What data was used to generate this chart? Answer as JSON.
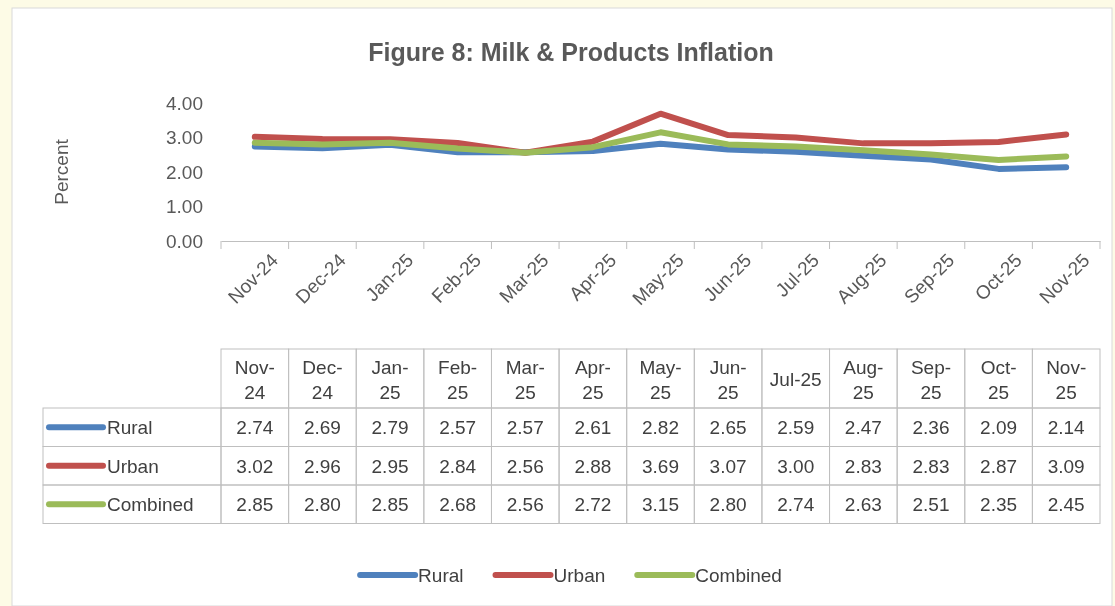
{
  "chart_data": {
    "type": "line",
    "title": "Figure 8: Milk & Products Inflation",
    "ylabel": "Percent",
    "categories": [
      "Nov-24",
      "Dec-24",
      "Jan-25",
      "Feb-25",
      "Mar-25",
      "Apr-25",
      "May-25",
      "Jun-25",
      "Jul-25",
      "Aug-25",
      "Sep-25",
      "Oct-25",
      "Nov-25"
    ],
    "series": [
      {
        "name": "Rural",
        "color": "#4f81bd",
        "values": [
          2.74,
          2.69,
          2.79,
          2.57,
          2.57,
          2.61,
          2.82,
          2.65,
          2.59,
          2.47,
          2.36,
          2.09,
          2.14
        ],
        "value_labels": [
          "2.74",
          "2.69",
          "2.79",
          "2.57",
          "2.57",
          "2.61",
          "2.82",
          "2.65",
          "2.59",
          "2.47",
          "2.36",
          "2.09",
          "2.14"
        ]
      },
      {
        "name": "Urban",
        "color": "#c0504d",
        "values": [
          3.02,
          2.96,
          2.95,
          2.84,
          2.56,
          2.88,
          3.69,
          3.07,
          3.0,
          2.83,
          2.83,
          2.87,
          3.09
        ],
        "value_labels": [
          "3.02",
          "2.96",
          "2.95",
          "2.84",
          "2.56",
          "2.88",
          "3.69",
          "3.07",
          "3.00",
          "2.83",
          "2.83",
          "2.87",
          "3.09"
        ]
      },
      {
        "name": "Combined",
        "color": "#9bbb59",
        "values": [
          2.85,
          2.8,
          2.85,
          2.68,
          2.56,
          2.72,
          3.15,
          2.8,
          2.74,
          2.63,
          2.51,
          2.35,
          2.45
        ],
        "value_labels": [
          "2.85",
          "2.80",
          "2.85",
          "2.68",
          "2.56",
          "2.72",
          "3.15",
          "2.80",
          "2.74",
          "2.63",
          "2.51",
          "2.35",
          "2.45"
        ]
      }
    ],
    "ylim": [
      0,
      4
    ],
    "yticks": [
      {
        "value": 0,
        "label": "0.00"
      },
      {
        "value": 1,
        "label": "1.00"
      },
      {
        "value": 2,
        "label": "2.00"
      },
      {
        "value": 3,
        "label": "3.00"
      },
      {
        "value": 4,
        "label": "4.00"
      }
    ],
    "grid": false,
    "legend": "bottom",
    "marker": "none",
    "line_style": "solid"
  }
}
